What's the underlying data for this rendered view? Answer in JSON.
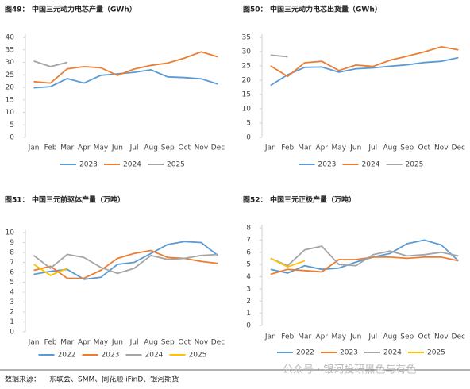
{
  "chart_data": [
    {
      "type": "line",
      "figure": "图49：",
      "title": "中国三元动力电芯产量（GWh）",
      "categories": [
        "Jan",
        "Feb",
        "Mar",
        "Apr",
        "May",
        "Jun",
        "Jul",
        "Aug",
        "Sep",
        "Oct",
        "Nov",
        "Dec"
      ],
      "ylim": [
        0,
        40
      ],
      "yticks": [
        0,
        5,
        10,
        15,
        20,
        25,
        30,
        35,
        40
      ],
      "grid": false,
      "legend": "bottom",
      "series": [
        {
          "name": "2023",
          "color": "#5b9bd5",
          "values": [
            19.8,
            20.3,
            23.5,
            21.7,
            24.8,
            25.4,
            26.0,
            27.0,
            24.2,
            23.9,
            23.4,
            21.3
          ]
        },
        {
          "name": "2024",
          "color": "#ed7d31",
          "values": [
            22.3,
            21.7,
            27.4,
            28.3,
            27.8,
            24.8,
            27.3,
            28.8,
            29.7,
            31.7,
            34.2,
            32.2
          ]
        },
        {
          "name": "2025",
          "color": "#a5a5a5",
          "values": [
            30.5,
            28.3,
            30.0,
            null,
            null,
            null,
            null,
            null,
            null,
            null,
            null,
            null
          ]
        }
      ]
    },
    {
      "type": "line",
      "figure": "图50：",
      "title": "中国三元动力电芯出货量（GWh）",
      "categories": [
        "Jan",
        "Feb",
        "Mar",
        "Apr",
        "May",
        "Jun",
        "Jul",
        "Aug",
        "Sep",
        "Oct",
        "Nov",
        "Dec"
      ],
      "ylim": [
        0,
        35
      ],
      "yticks": [
        0,
        5,
        10,
        15,
        20,
        25,
        30,
        35
      ],
      "grid": false,
      "legend": "bottom",
      "series": [
        {
          "name": "2023",
          "color": "#5b9bd5",
          "values": [
            18.2,
            21.9,
            24.5,
            24.6,
            22.8,
            24.0,
            24.3,
            24.9,
            25.4,
            26.2,
            26.6,
            27.9
          ]
        },
        {
          "name": "2024",
          "color": "#ed7d31",
          "values": [
            25.0,
            21.3,
            26.1,
            26.6,
            23.4,
            25.3,
            24.8,
            27.0,
            28.4,
            29.9,
            31.7,
            30.6
          ]
        },
        {
          "name": "2025",
          "color": "#a5a5a5",
          "values": [
            28.8,
            28.2,
            null,
            null,
            null,
            null,
            null,
            null,
            null,
            null,
            null,
            null
          ]
        }
      ]
    },
    {
      "type": "line",
      "figure": "图51：",
      "title": "中国三元前驱体产量（万吨）",
      "categories": [
        "Jan",
        "Feb",
        "Mar",
        "Apr",
        "May",
        "Jun",
        "Jul",
        "Aug",
        "Sep",
        "Oct",
        "Nov",
        "Dec"
      ],
      "ylim": [
        0,
        10
      ],
      "yticks": [
        0,
        1,
        2,
        3,
        4,
        5,
        6,
        7,
        8,
        9,
        10
      ],
      "grid": false,
      "legend": "bottom",
      "series": [
        {
          "name": "2022",
          "color": "#5b9bd5",
          "values": [
            5.8,
            6.1,
            6.3,
            5.3,
            5.5,
            6.8,
            7.0,
            7.9,
            8.8,
            9.1,
            9.0,
            7.7
          ]
        },
        {
          "name": "2023",
          "color": "#ed7d31",
          "values": [
            6.2,
            6.6,
            5.4,
            5.4,
            6.2,
            7.4,
            7.9,
            8.2,
            7.5,
            7.4,
            7.1,
            6.9
          ]
        },
        {
          "name": "2024",
          "color": "#a5a5a5",
          "values": [
            7.7,
            6.4,
            7.8,
            7.5,
            6.5,
            5.9,
            6.4,
            7.7,
            7.3,
            7.4,
            7.7,
            7.8
          ]
        },
        {
          "name": "2025",
          "color": "#ffc000",
          "values": [
            6.8,
            5.7,
            6.4,
            null,
            null,
            null,
            null,
            null,
            null,
            null,
            null,
            null
          ]
        }
      ]
    },
    {
      "type": "line",
      "figure": "图52：",
      "title": "中国三元正极产量（万吨）",
      "categories": [
        "Jan",
        "Feb",
        "Mar",
        "Apr",
        "May",
        "Jun",
        "Jul",
        "Aug",
        "Sep",
        "Oct",
        "Nov",
        "Dec"
      ],
      "ylim": [
        0,
        8
      ],
      "yticks": [
        0,
        1,
        2,
        3,
        4,
        5,
        6,
        7,
        8
      ],
      "grid": false,
      "legend": "bottom",
      "series": [
        {
          "name": "2022",
          "color": "#5b9bd5",
          "values": [
            4.6,
            4.3,
            4.9,
            4.6,
            4.7,
            5.2,
            5.6,
            5.9,
            6.7,
            7.0,
            6.6,
            5.3
          ]
        },
        {
          "name": "2023",
          "color": "#ed7d31",
          "values": [
            4.2,
            4.6,
            4.5,
            4.4,
            5.4,
            5.4,
            5.6,
            5.6,
            5.5,
            5.6,
            5.6,
            5.3
          ]
        },
        {
          "name": "2024",
          "color": "#a5a5a5",
          "values": [
            5.5,
            4.9,
            6.2,
            6.5,
            5.0,
            4.9,
            5.8,
            6.1,
            5.7,
            5.8,
            6.0,
            5.7
          ]
        },
        {
          "name": "2025",
          "color": "#ffc000",
          "values": [
            5.5,
            4.8,
            5.3,
            null,
            null,
            null,
            null,
            null,
            null,
            null,
            null,
            null
          ]
        }
      ]
    }
  ],
  "source_label": "数据来源：",
  "source": "东联会、SMM、同花顺 iFinD、银河期货",
  "watermark": "公众号 · 银河投研黑色与有色"
}
